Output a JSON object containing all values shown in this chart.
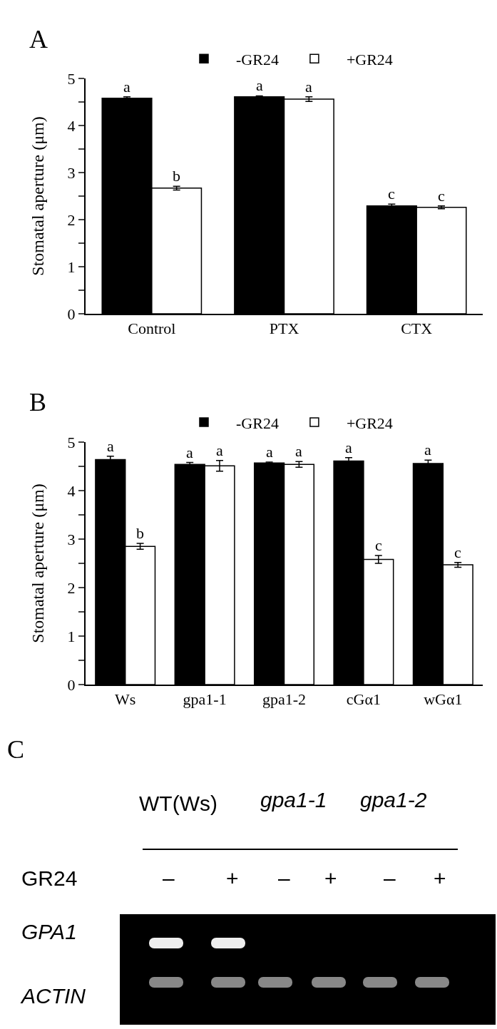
{
  "chart_data": [
    {
      "type": "bar",
      "title": "A",
      "ylabel": "Stomatal aperture (μm)",
      "categories": [
        "Control",
        "PTX",
        "CTX"
      ],
      "series": [
        {
          "name": "-GR24",
          "color": "#000000",
          "values": [
            4.58,
            4.61,
            2.29
          ],
          "errors": [
            0.03,
            0.02,
            0.04
          ]
        },
        {
          "name": "+GR24",
          "color": "#ffffff",
          "values": [
            2.67,
            4.56,
            2.26
          ],
          "errors": [
            0.04,
            0.05,
            0.03
          ]
        }
      ],
      "ylim": [
        0,
        5
      ],
      "yticks": [
        0,
        {
          "value": 0.5,
          "label": null
        },
        1,
        {
          "value": 1.5,
          "label": null
        },
        2,
        {
          "value": 2.5,
          "label": null
        },
        3,
        {
          "value": 3.5,
          "label": null
        },
        4,
        {
          "value": 4.5,
          "label": null
        },
        5
      ],
      "legend": "top",
      "grid": false,
      "annotations": [
        {
          "text": "a",
          "x": "Control",
          "y": 4.58
        },
        {
          "text": "b",
          "x": "Control",
          "y": 2.67
        },
        {
          "text": "a",
          "x": "PTX",
          "y": 4.61
        },
        {
          "text": "a",
          "x": "PTX",
          "y": 4.56
        },
        {
          "text": "c",
          "x": "CTX",
          "y": 2.29
        },
        {
          "text": "c",
          "x": "CTX",
          "y": 2.26
        }
      ]
    },
    {
      "type": "bar",
      "title": "B",
      "ylabel": "Stomatal aperture (μm)",
      "categories": [
        "Ws",
        "gpa1-1",
        "gpa1-2",
        "cGα1",
        "wGα1"
      ],
      "series": [
        {
          "name": "-GR24",
          "color": "#000000",
          "values": [
            4.64,
            4.54,
            4.57,
            4.61,
            4.56
          ],
          "errors": [
            0.07,
            0.04,
            0.02,
            0.07,
            0.07
          ]
        },
        {
          "name": "+GR24",
          "color": "#ffffff",
          "values": [
            2.85,
            4.51,
            4.54,
            2.58,
            2.47
          ],
          "errors": [
            0.06,
            0.11,
            0.06,
            0.08,
            0.05
          ]
        }
      ],
      "ylim": [
        0,
        5
      ],
      "yticks": [
        0,
        {
          "value": 0.5,
          "label": null
        },
        1,
        {
          "value": 1.5,
          "label": null
        },
        2,
        {
          "value": 2.5,
          "label": null
        },
        3,
        {
          "value": 3.5,
          "label": null
        },
        4,
        {
          "value": 4.5,
          "label": null
        },
        5
      ],
      "legend": "top",
      "grid": false,
      "annotations": [
        {
          "text": "a",
          "x": "Ws",
          "y": 4.64
        },
        {
          "text": "b",
          "x": "Ws",
          "y": 2.85
        },
        {
          "text": "a",
          "x": "gpa1-1",
          "y": 4.54
        },
        {
          "text": "a",
          "x": "gpa1-1",
          "y": 4.51
        },
        {
          "text": "a",
          "x": "gpa1-2",
          "y": 4.57
        },
        {
          "text": "a",
          "x": "gpa1-2",
          "y": 4.54
        },
        {
          "text": "a",
          "x": "cGα1",
          "y": 4.61
        },
        {
          "text": "c",
          "x": "cGα1",
          "y": 2.58
        },
        {
          "text": "a",
          "x": "wGα1",
          "y": 4.56
        },
        {
          "text": "c",
          "x": "wGα1",
          "y": 2.47
        }
      ]
    },
    {
      "type": "other",
      "title": "C",
      "annotations": [
        "WT(Ws)",
        "gpa1-1",
        "gpa1-2",
        "GR24",
        "–",
        "+",
        "–",
        "+",
        "–",
        "+",
        "GPA1",
        "ACTIN"
      ]
    }
  ]
}
